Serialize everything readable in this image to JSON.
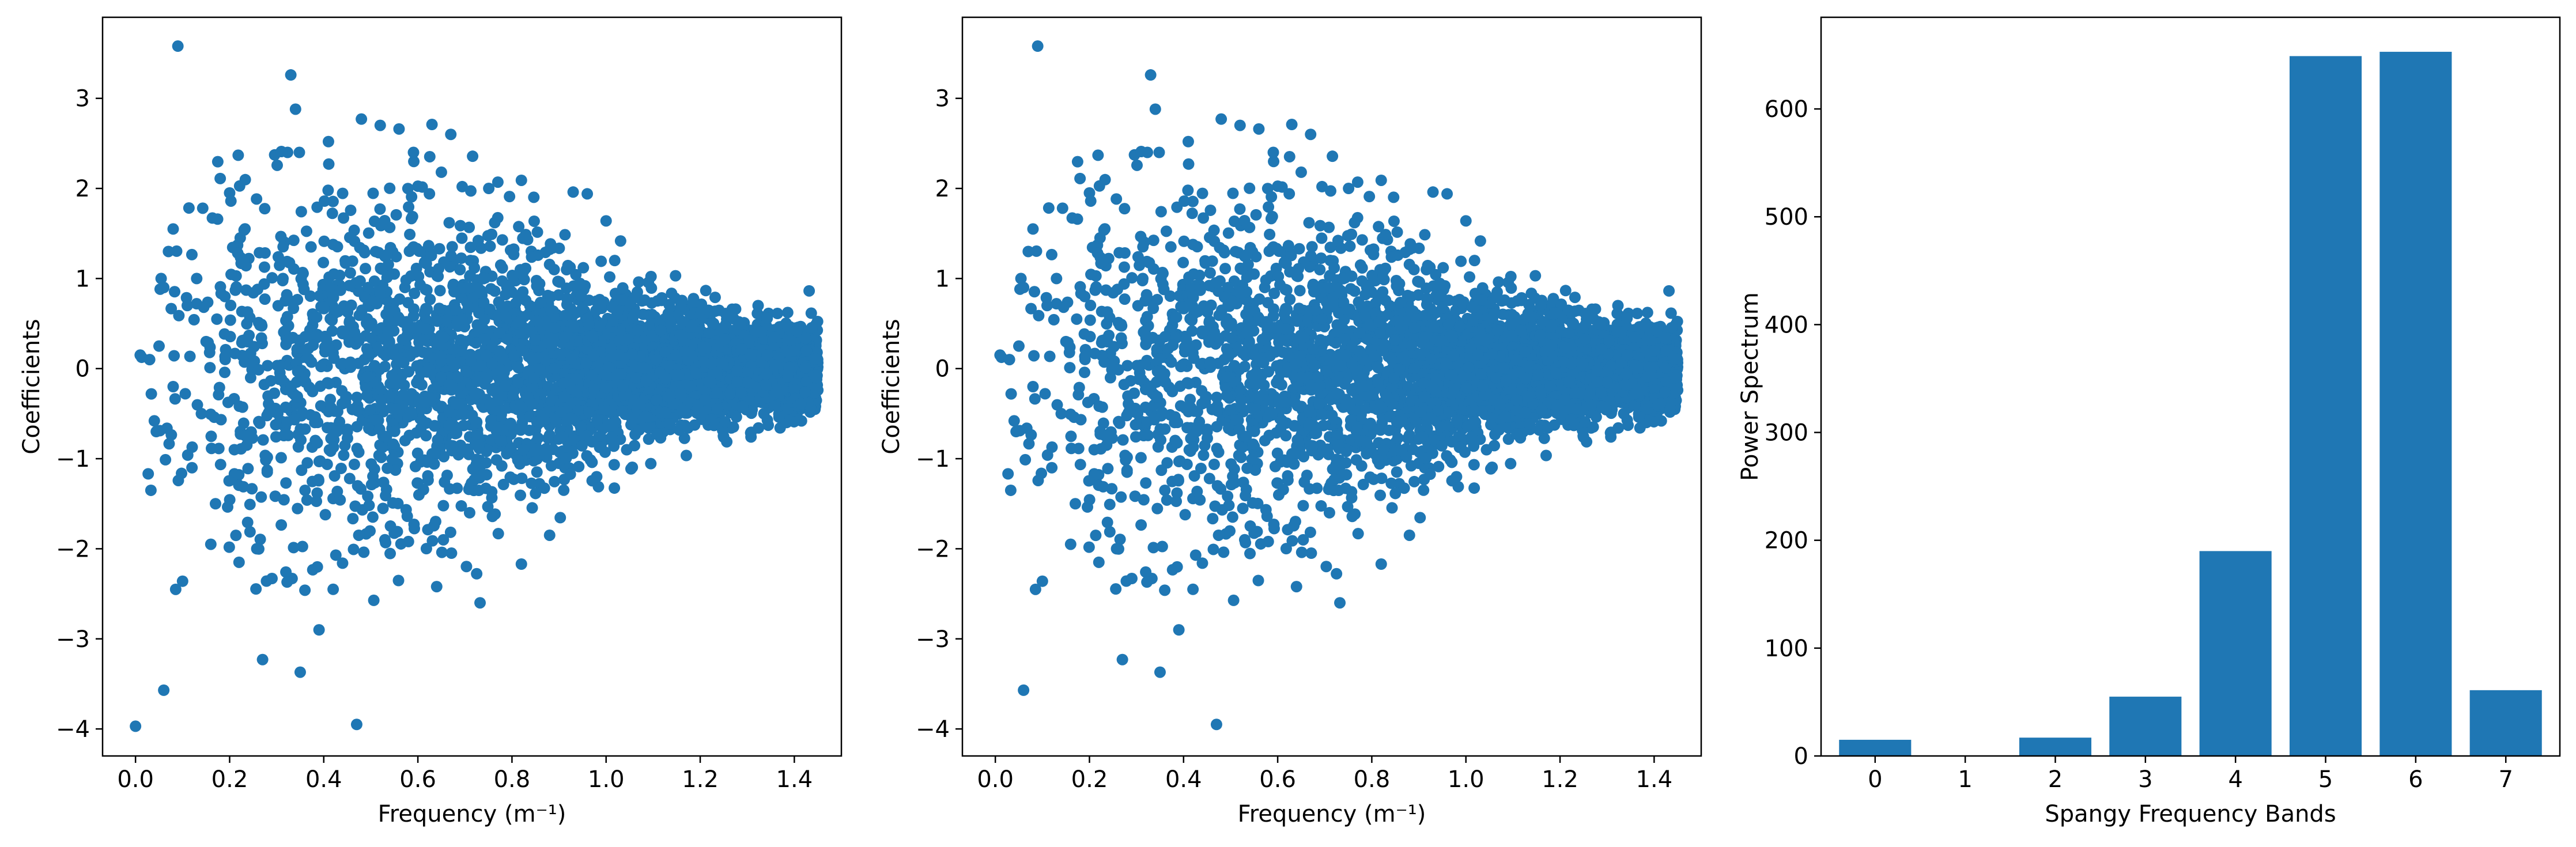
{
  "chart_data": [
    {
      "type": "scatter",
      "title": "",
      "xlabel": "Frequency (m⁻¹)",
      "ylabel": "Coefficients",
      "xlim": [
        -0.07,
        1.5
      ],
      "ylim": [
        -4.3,
        3.9
      ],
      "xticks": [
        "0.0",
        "0.2",
        "0.4",
        "0.6",
        "0.8",
        "1.0",
        "1.2",
        "1.4"
      ],
      "yticks": [
        "−4",
        "−3",
        "−2",
        "−1",
        "0",
        "1",
        "2",
        "3"
      ],
      "color": "#1f77b4",
      "points": [
        [
          0.0,
          -3.97
        ],
        [
          0.06,
          -3.57
        ],
        [
          0.09,
          3.58
        ],
        [
          0.33,
          3.26
        ],
        [
          0.27,
          -3.23
        ],
        [
          0.35,
          -3.37
        ],
        [
          0.47,
          -3.95
        ],
        [
          0.39,
          -2.9
        ],
        [
          0.48,
          2.77
        ],
        [
          0.52,
          2.7
        ],
        [
          0.63,
          2.71
        ],
        [
          0.56,
          2.66
        ],
        [
          0.67,
          2.6
        ],
        [
          0.34,
          2.88
        ],
        [
          0.31,
          2.41
        ],
        [
          0.41,
          2.52
        ],
        [
          0.18,
          2.11
        ],
        [
          0.2,
          1.95
        ],
        [
          0.65,
          2.18
        ],
        [
          0.77,
          2.07
        ],
        [
          0.82,
          2.09
        ],
        [
          0.93,
          1.96
        ],
        [
          0.96,
          1.94
        ],
        [
          1.0,
          1.64
        ],
        [
          0.08,
          1.55
        ],
        [
          0.1,
          -2.36
        ],
        [
          0.16,
          -1.95
        ],
        [
          0.22,
          -2.15
        ],
        [
          0.29,
          -2.33
        ],
        [
          0.36,
          -2.46
        ],
        [
          0.42,
          -2.45
        ],
        [
          0.44,
          -2.16
        ],
        [
          0.53,
          -1.9
        ],
        [
          0.58,
          -1.92
        ],
        [
          0.64,
          -2.42
        ],
        [
          0.82,
          -2.17
        ],
        [
          0.71,
          -1.6
        ],
        [
          0.88,
          -1.85
        ],
        [
          0.91,
          -1.35
        ],
        [
          0.98,
          -1.2
        ],
        [
          0.01,
          0.15
        ],
        [
          0.03,
          0.1
        ],
        [
          0.04,
          -0.58
        ],
        [
          0.05,
          0.25
        ],
        [
          0.06,
          0.9
        ],
        [
          0.07,
          1.3
        ],
        [
          0.08,
          -0.2
        ],
        [
          0.11,
          0.7
        ],
        [
          0.12,
          -1.1
        ],
        [
          0.13,
          1.0
        ],
        [
          0.14,
          -0.5
        ],
        [
          0.15,
          0.3
        ],
        [
          0.17,
          -1.5
        ],
        [
          0.19,
          0.8
        ],
        [
          0.21,
          -0.9
        ],
        [
          0.23,
          1.2
        ]
      ]
    },
    {
      "type": "scatter",
      "title": "",
      "xlabel": "Frequency (m⁻¹)",
      "ylabel": "Coefficients",
      "xlim": [
        -0.07,
        1.5
      ],
      "ylim": [
        -4.3,
        3.9
      ],
      "xticks": [
        "0.0",
        "0.2",
        "0.4",
        "0.6",
        "0.8",
        "1.0",
        "1.2",
        "1.4"
      ],
      "yticks": [
        "−4",
        "−3",
        "−2",
        "−1",
        "0",
        "1",
        "2",
        "3"
      ],
      "color": "#1f77b4",
      "points": [
        [
          0.06,
          -3.57
        ],
        [
          0.09,
          3.58
        ],
        [
          0.33,
          3.26
        ],
        [
          0.27,
          -3.23
        ],
        [
          0.35,
          -3.37
        ],
        [
          0.47,
          -3.95
        ],
        [
          0.39,
          -2.9
        ],
        [
          0.48,
          2.77
        ],
        [
          0.52,
          2.7
        ],
        [
          0.63,
          2.71
        ],
        [
          0.56,
          2.66
        ],
        [
          0.67,
          2.6
        ],
        [
          0.34,
          2.88
        ],
        [
          0.31,
          2.41
        ],
        [
          0.41,
          2.52
        ],
        [
          0.18,
          2.11
        ],
        [
          0.2,
          1.95
        ],
        [
          0.65,
          2.18
        ],
        [
          0.77,
          2.07
        ],
        [
          0.82,
          2.09
        ],
        [
          0.93,
          1.96
        ],
        [
          0.96,
          1.94
        ],
        [
          1.0,
          1.64
        ],
        [
          0.08,
          1.55
        ],
        [
          0.1,
          -2.36
        ],
        [
          0.16,
          -1.95
        ],
        [
          0.22,
          -2.15
        ],
        [
          0.29,
          -2.33
        ],
        [
          0.36,
          -2.46
        ],
        [
          0.42,
          -2.45
        ],
        [
          0.44,
          -2.16
        ],
        [
          0.53,
          -1.9
        ],
        [
          0.58,
          -1.92
        ],
        [
          0.64,
          -2.42
        ],
        [
          0.82,
          -2.17
        ],
        [
          0.71,
          -1.6
        ],
        [
          0.88,
          -1.85
        ],
        [
          0.91,
          -1.35
        ],
        [
          0.98,
          -1.2
        ],
        [
          0.01,
          0.15
        ],
        [
          0.03,
          0.1
        ],
        [
          0.04,
          -0.58
        ],
        [
          0.05,
          0.25
        ],
        [
          0.06,
          0.9
        ],
        [
          0.07,
          1.3
        ],
        [
          0.08,
          -0.2
        ],
        [
          0.11,
          0.7
        ],
        [
          0.12,
          -1.1
        ],
        [
          0.13,
          1.0
        ],
        [
          0.14,
          -0.5
        ],
        [
          0.15,
          0.3
        ],
        [
          0.17,
          -1.5
        ],
        [
          0.19,
          0.8
        ],
        [
          0.21,
          -0.9
        ],
        [
          0.23,
          1.2
        ]
      ]
    },
    {
      "type": "bar",
      "title": "",
      "xlabel": "Spangy Frequency Bands",
      "ylabel": "Power Spectrum",
      "categories": [
        "0",
        "1",
        "2",
        "3",
        "4",
        "5",
        "6",
        "7"
      ],
      "values": [
        15,
        0,
        17,
        55,
        190,
        649,
        653,
        61
      ],
      "ylim": [
        0,
        685
      ],
      "yticks": [
        0,
        100,
        200,
        300,
        400,
        500,
        600
      ],
      "color": "#1f77b4"
    }
  ]
}
